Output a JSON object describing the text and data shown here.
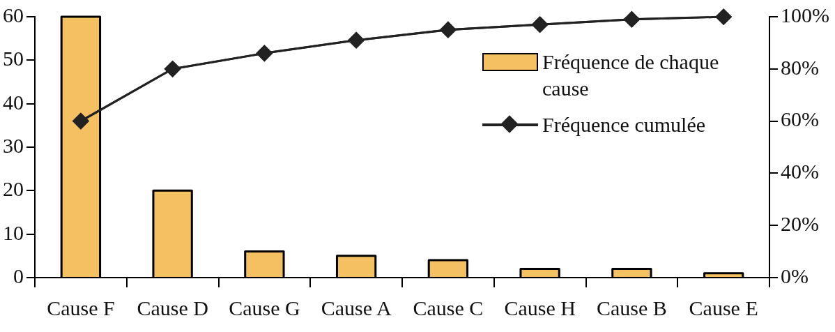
{
  "chart_data": {
    "type": "bar",
    "categories": [
      "Cause F",
      "Cause D",
      "Cause G",
      "Cause A",
      "Cause C",
      "Cause H",
      "Cause B",
      "Cause E"
    ],
    "series": [
      {
        "name": "Fréquence de chaque cause",
        "color": "#f5c062",
        "values": [
          60,
          20,
          6,
          5,
          4,
          2,
          2,
          1
        ]
      },
      {
        "name": "Fréquence cumulée",
        "type": "line",
        "axis": "y2",
        "color": "#222222",
        "values": [
          60,
          80,
          86,
          91,
          95,
          97,
          99,
          100
        ]
      }
    ],
    "ylim": [
      0,
      60
    ],
    "yticks": [
      0,
      10,
      20,
      30,
      40,
      50,
      60
    ],
    "y2lim": [
      0,
      100
    ],
    "y2ticks": [
      {
        "value": 0,
        "label": "0%"
      },
      {
        "value": 20,
        "label": "20%"
      },
      {
        "value": 40,
        "label": "40%"
      },
      {
        "value": 60,
        "label": "60%"
      },
      {
        "value": 80,
        "label": "80%"
      },
      {
        "value": 100,
        "label": "100%"
      }
    ],
    "grid": false,
    "legend": "top right",
    "marker": "diamond",
    "line_style": "solid"
  }
}
